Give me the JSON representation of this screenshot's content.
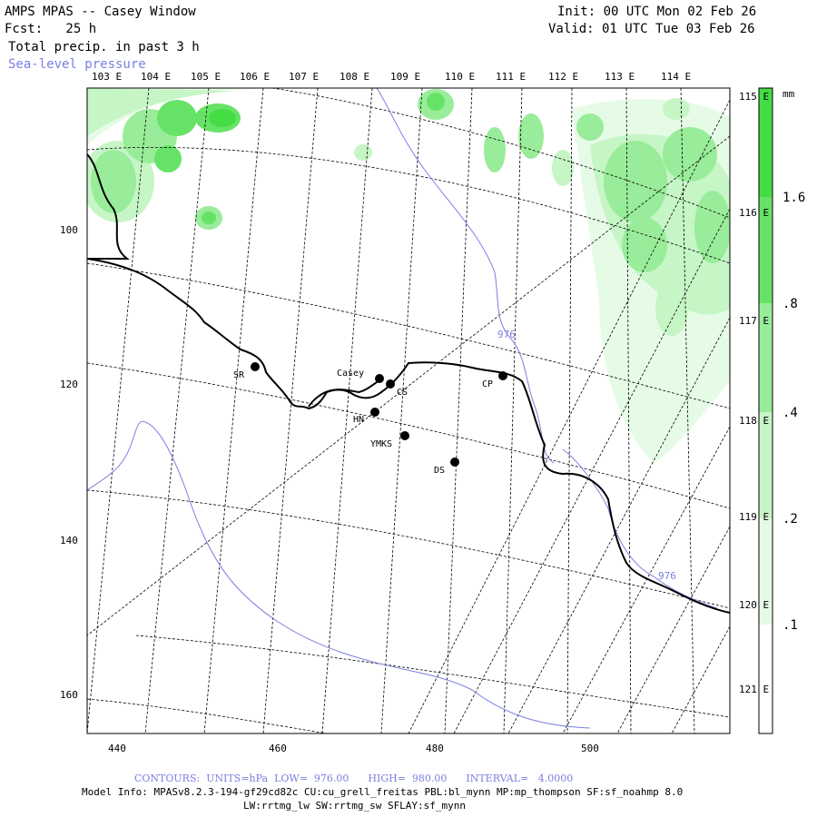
{
  "header": {
    "title": "AMPS MPAS -- Casey Window",
    "fcst": "Fcst:   25 h",
    "field": "Total precip. in past 3 h",
    "overlay": "Sea-level pressure",
    "init": "Init: 00 UTC Mon 02 Feb 26",
    "valid": "Valid: 01 UTC Tue 03 Feb 26"
  },
  "map": {
    "top_lon_labels": [
      "103 E",
      "104 E",
      "105 E",
      "106 E",
      "107 E",
      "108 E",
      "109 E",
      "110 E",
      "111 E",
      "112 E",
      "113 E",
      "114 E"
    ],
    "right_lon_labels": [
      "115 E",
      "116 E",
      "117 E",
      "118 E",
      "119 E",
      "120 E",
      "121 E"
    ],
    "left_y_labels": [
      "100",
      "120",
      "140",
      "160"
    ],
    "bottom_x_labels": [
      "440",
      "460",
      "480",
      "500"
    ],
    "stations": [
      {
        "id": "SR",
        "label": "SR"
      },
      {
        "id": "Casey",
        "label": "Casey"
      },
      {
        "id": "CS",
        "label": "CS"
      },
      {
        "id": "HN",
        "label": "HN"
      },
      {
        "id": "YMKS",
        "label": "YMKS"
      },
      {
        "id": "DS",
        "label": "DS"
      },
      {
        "id": "CP",
        "label": "CP"
      }
    ],
    "contour_labels": [
      "976",
      "976"
    ],
    "colors": {
      "coast": "#000000",
      "isobar": "#7b7fe0",
      "grid": "#000000",
      "precip_levels": [
        "#f2fdf2",
        "#d9f7d9",
        "#b3efb3",
        "#8de78d",
        "#66de66",
        "#3fd63f"
      ]
    }
  },
  "colorbar": {
    "unit": "mm",
    "labels": [
      "1.6",
      ".8",
      ".4",
      ".2",
      ".1"
    ],
    "colors": [
      "#44dd44",
      "#66e366",
      "#99ec99",
      "#c6f5c6",
      "#e6fbe6",
      "#ffffff"
    ]
  },
  "footer": {
    "contours": "CONTOURS:  UNITS=hPa  LOW=  976.00      HIGH=  980.00      INTERVAL=   4.0000",
    "model_info": "Model Info: MPASv8.2.3-194-gf29cd82c CU:cu_grell_freitas PBL:bl_mynn MP:mp_thompson SF:sf_noahmp 8.0",
    "model_info2": "LW:rrtmg_lw SW:rrtmg_sw SFLAY:sf_mynn"
  }
}
